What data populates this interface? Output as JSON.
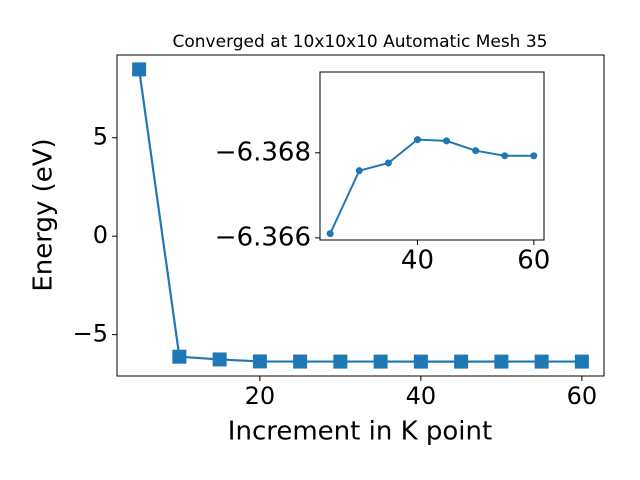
{
  "chart_data": [
    {
      "type": "line",
      "title": "Converged at 10x10x10 Automatic Mesh 35",
      "xlabel": "Increment in K point",
      "ylabel": "Energy (eV)",
      "x": [
        5,
        10,
        15,
        20,
        25,
        30,
        35,
        40,
        45,
        50,
        55,
        60
      ],
      "series": [
        {
          "color": "#1f77b4",
          "marker": "square",
          "values": [
            8.47,
            -6.12,
            -6.26,
            -6.36,
            -6.3661,
            -6.3676,
            -6.3678,
            -6.3683,
            -6.3683,
            -6.3681,
            -6.3679,
            -6.3679
          ]
        }
      ],
      "xlim": [
        2.25,
        62.75
      ],
      "ylim": [
        -7.1,
        9.2
      ],
      "xticks": [
        20,
        40,
        60
      ],
      "yticks": [
        {
          "value": -5,
          "label": "−5"
        },
        0,
        5
      ]
    },
    {
      "type": "line",
      "x": [
        25,
        30,
        35,
        40,
        45,
        50,
        55,
        60
      ],
      "series": [
        {
          "color": "#1f77b4",
          "marker": "circle",
          "values": [
            -6.3661,
            -6.36758,
            -6.36776,
            -6.36831,
            -6.36828,
            -6.36805,
            -6.36793,
            -6.36793
          ]
        }
      ],
      "xlim": [
        23.25,
        61.75
      ],
      "ylim": [
        -6.36595,
        -6.3699
      ],
      "xticks": [
        40,
        60
      ],
      "yticks": [
        {
          "value": -6.366,
          "label": "−6.366"
        },
        {
          "value": -6.368,
          "label": "−6.368"
        }
      ]
    }
  ]
}
